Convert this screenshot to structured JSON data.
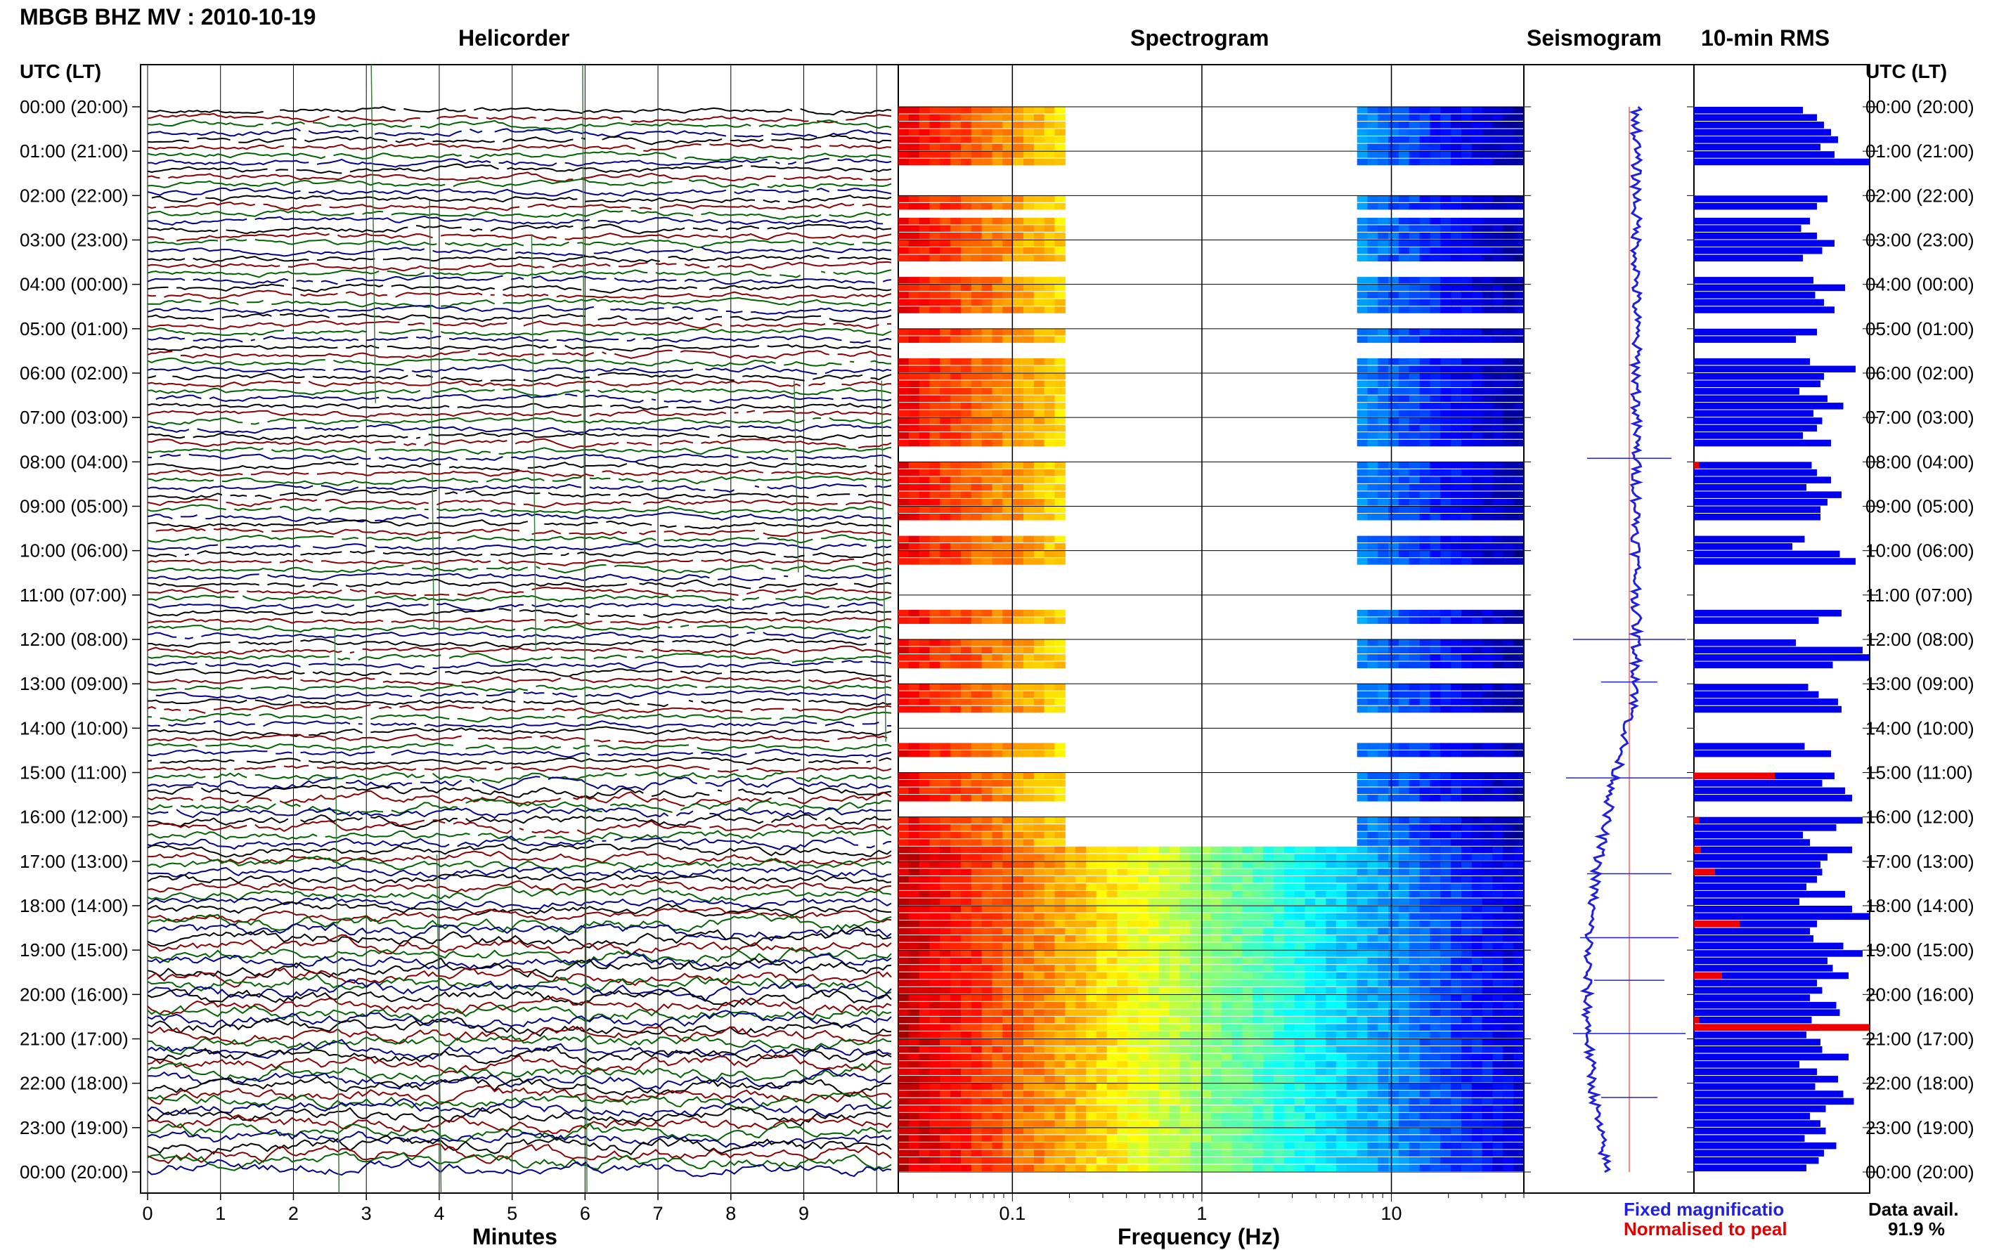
{
  "title": "MBGB BHZ MV : 2010-10-19",
  "panels": {
    "helicorder": "Helicorder",
    "spectrogram": "Spectrogram",
    "seismogram": "Seismogram",
    "rms": "10-min RMS"
  },
  "axis_labels": {
    "time_left": "UTC (LT)",
    "time_right": "UTC (LT)",
    "minutes": "Minutes",
    "frequency": "Frequency (Hz)"
  },
  "legend": {
    "fixed": "Fixed magnificatio",
    "normalised": "Normalised to peal",
    "data_avail_label": "Data avail.",
    "data_avail_value": "91.9 %"
  },
  "colors": {
    "fixed": "#2020e0",
    "normalised": "#e00000",
    "rms_bar": "#0000ee",
    "rms_peak": "#ee0000",
    "trace_colors": [
      "#000000",
      "#8b0000",
      "#006400",
      "#00008b"
    ]
  },
  "chart_data": [
    {
      "type": "line",
      "name": "helicorder",
      "xlabel": "Minutes",
      "x_ticks": [
        "0",
        "1",
        "2",
        "3",
        "4",
        "5",
        "6",
        "7",
        "8",
        "9"
      ],
      "xlim": [
        0,
        10
      ],
      "y_tick_labels": [
        "00:00 (20:00)",
        "01:00 (21:00)",
        "02:00 (22:00)",
        "03:00 (23:00)",
        "04:00 (00:00)",
        "05:00 (01:00)",
        "06:00 (02:00)",
        "07:00 (03:00)",
        "08:00 (04:00)",
        "09:00 (05:00)",
        "10:00 (06:00)",
        "11:00 (07:00)",
        "12:00 (08:00)",
        "13:00 (09:00)",
        "14:00 (10:00)",
        "15:00 (11:00)",
        "16:00 (12:00)",
        "17:00 (13:00)",
        "18:00 (14:00)",
        "19:00 (15:00)",
        "20:00 (16:00)",
        "21:00 (17:00)",
        "22:00 (18:00)",
        "23:00 (19:00)",
        "00:00 (20:00)"
      ],
      "rows": 144,
      "minutes_per_row": 10
    },
    {
      "type": "heatmap",
      "name": "spectrogram",
      "xlabel": "Frequency (Hz)",
      "x_scale": "log",
      "xlim": [
        0.025,
        50
      ],
      "x_ticks": [
        "0.1",
        "1",
        "10"
      ],
      "colormap": "jet",
      "time_rows": 144
    },
    {
      "type": "line",
      "name": "seismogram",
      "line_color": "#ff6060"
    },
    {
      "type": "bar",
      "name": "rms",
      "orientation": "horizontal",
      "bar_rel_values": [
        0.62,
        0.7,
        0.74,
        0.78,
        0.82,
        0.72,
        0.8,
        1.0,
        0.6,
        0.56,
        0.71,
        0.66,
        0.76,
        0.7,
        0.57,
        0.66,
        0.61,
        0.7,
        0.8,
        0.73,
        0.62,
        0.71,
        0.6,
        0.68,
        0.86,
        0.69,
        0.74,
        0.8,
        0.64,
        0.76,
        0.7,
        0.58,
        0.78,
        0.73,
        0.66,
        0.92,
        0.74,
        0.72,
        0.6,
        0.76,
        0.85,
        0.68,
        0.73,
        0.7,
        0.62,
        0.78,
        0.71,
        0.82,
        0.67,
        0.7,
        0.78,
        0.64,
        0.84,
        0.76,
        0.72,
        0.72,
        0.68,
        0.73,
        0.63,
        0.56,
        0.83,
        0.92,
        0.68,
        0.74,
        0.73,
        0.66,
        0.7,
        0.74,
        0.84,
        0.71,
        0.65,
        0.66,
        0.58,
        0.96,
        1.0,
        0.79,
        0.79,
        0.8,
        0.65,
        0.71,
        0.82,
        0.84,
        0.66,
        0.7,
        0.76,
        0.69,
        0.63,
        0.78,
        0.74,
        0.75,
        0.8,
        0.73,
        0.86,
        0.9,
        0.92,
        0.78,
        0.96,
        0.81,
        0.62,
        0.66,
        0.9,
        0.76,
        0.72,
        0.73,
        0.7,
        0.64,
        0.86,
        0.6,
        0.9,
        1.0,
        0.7,
        0.66,
        0.68,
        0.85,
        0.96,
        0.76,
        0.79,
        0.88,
        0.7,
        0.73,
        0.66,
        0.81,
        0.83,
        0.67,
        0.71,
        0.64,
        0.72,
        0.73,
        0.88,
        0.6,
        0.7,
        0.82,
        0.69,
        0.85,
        0.91,
        0.75,
        0.66,
        0.72,
        0.75,
        0.63,
        0.81,
        0.74,
        0.71,
        0.64
      ],
      "peak_rel_values": [
        0,
        0,
        0,
        0,
        0,
        0,
        0,
        0,
        0,
        0,
        0,
        0,
        0,
        0,
        0,
        0,
        0,
        0,
        0,
        0,
        0,
        0,
        0,
        0,
        0,
        0,
        0,
        0,
        0,
        0,
        0,
        0,
        0,
        0,
        0,
        0,
        0,
        0,
        0,
        0,
        0,
        0,
        0,
        0,
        0,
        0,
        0,
        0,
        0.03,
        0,
        0,
        0,
        0,
        0,
        0,
        0,
        0,
        0,
        0,
        0,
        0,
        0,
        0,
        0,
        0,
        0,
        0,
        0,
        0,
        0,
        0,
        0.05,
        0,
        0,
        0,
        0,
        0,
        0,
        0,
        0,
        0,
        0,
        0,
        0,
        0,
        0,
        0,
        0,
        0,
        0,
        0.46,
        0,
        0,
        0,
        0,
        0,
        0.03,
        0,
        0,
        0,
        0.04,
        0,
        0,
        0.12,
        0,
        0,
        0,
        0,
        0,
        0,
        0.26,
        0,
        0,
        0,
        0,
        0,
        0,
        0.16,
        0,
        0,
        0,
        0,
        0,
        0.03,
        1.0,
        0,
        0,
        0,
        0,
        0,
        0,
        0,
        0,
        0,
        0,
        0,
        0,
        0,
        0,
        0,
        0,
        0,
        0,
        0,
        0,
        0,
        0,
        0
      ]
    }
  ]
}
